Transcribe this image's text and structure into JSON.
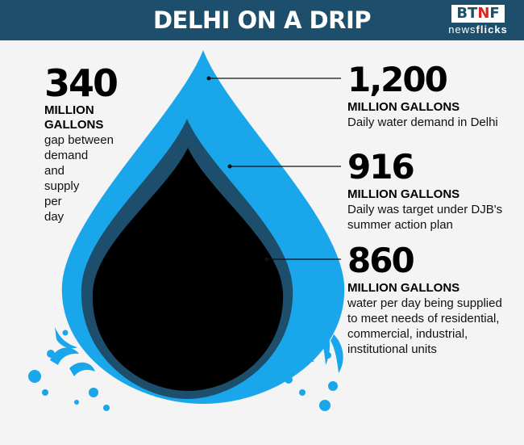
{
  "header": {
    "title": "DELHI ON A DRIP",
    "brand_left": "BT",
    "brand_mid": "N",
    "brand_right": "F",
    "brand_sub_a": "news",
    "brand_sub_b": "flicks"
  },
  "chart_data": {
    "type": "nested-area",
    "unit": "MILLION GALLONS",
    "items": [
      {
        "value": 1200,
        "label": "1,200",
        "unit": "MILLION GALLONS",
        "desc": "Daily water demand in Delhi",
        "color": "#1aa6ea"
      },
      {
        "value": 916,
        "label": "916",
        "unit": "MILLION GALLONS",
        "desc": "Daily was target under DJB's summer action plan",
        "color": "#1d4f6c"
      },
      {
        "value": 860,
        "label": "860",
        "unit": "MILLION GALLONS",
        "desc": "water per day being supplied to meet needs of residential, commercial, industrial, institutional units",
        "color": "#000000"
      }
    ],
    "gap": {
      "value": 340,
      "label": "340",
      "unit_line1": "MILLION",
      "unit_line2": "GALLONS",
      "desc_lines": [
        "gap between",
        "demand",
        "and",
        "supply",
        "per",
        "day"
      ]
    }
  },
  "colors": {
    "header_bg": "#1d4f6c",
    "drop_outer": "#1aa6ea",
    "drop_middle": "#1d4f6c",
    "drop_inner": "#000000",
    "splash": "#1aa6ea"
  }
}
